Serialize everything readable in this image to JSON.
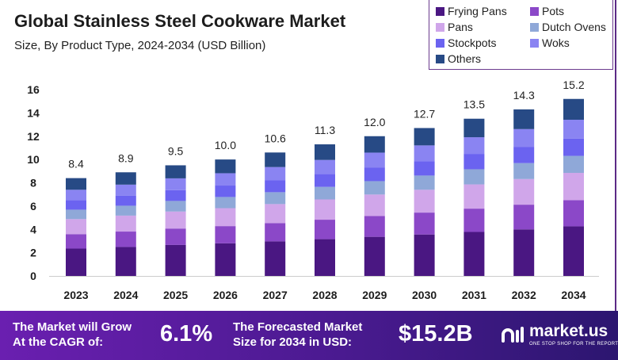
{
  "chart_data": {
    "type": "bar",
    "stacked": true,
    "title": "Global Stainless Steel Cookware Market",
    "subtitle": "Size, By Product Type, 2024-2034 (USD Billion)",
    "categories": [
      "2023",
      "2024",
      "2025",
      "2026",
      "2027",
      "2028",
      "2029",
      "2030",
      "2031",
      "2032",
      "2034"
    ],
    "totals": [
      "8.4",
      "8.9",
      "9.5",
      "10.0",
      "10.6",
      "11.3",
      "12.0",
      "12.7",
      "13.5",
      "14.3",
      "15.2"
    ],
    "ylim": [
      0,
      16
    ],
    "yticks": [
      0,
      2,
      4,
      6,
      8,
      10,
      12,
      14,
      16
    ],
    "grid": false,
    "legend_position": "top-right",
    "series": [
      {
        "name": "Frying Pans",
        "color": "#4a1782",
        "values": [
          2.35,
          2.49,
          2.66,
          2.8,
          2.97,
          3.16,
          3.36,
          3.56,
          3.78,
          4.0,
          4.26
        ]
      },
      {
        "name": "Pots",
        "color": "#8b48c8",
        "values": [
          1.24,
          1.32,
          1.41,
          1.48,
          1.57,
          1.67,
          1.78,
          1.88,
          2.0,
          2.12,
          2.25
        ]
      },
      {
        "name": "Pans",
        "color": "#d0a6ea",
        "values": [
          1.29,
          1.37,
          1.46,
          1.54,
          1.63,
          1.74,
          1.85,
          1.96,
          2.08,
          2.2,
          2.34
        ]
      },
      {
        "name": "Dutch Ovens",
        "color": "#8fa8d8",
        "values": [
          0.81,
          0.85,
          0.91,
          0.96,
          1.02,
          1.08,
          1.15,
          1.22,
          1.3,
          1.37,
          1.46
        ]
      },
      {
        "name": "Stockpots",
        "color": "#6b63f0",
        "values": [
          0.82,
          0.87,
          0.93,
          0.98,
          1.04,
          1.11,
          1.18,
          1.24,
          1.32,
          1.4,
          1.49
        ]
      },
      {
        "name": "Woks",
        "color": "#8a84f2",
        "values": [
          0.89,
          0.94,
          1.01,
          1.06,
          1.12,
          1.2,
          1.27,
          1.35,
          1.43,
          1.52,
          1.61
        ]
      },
      {
        "name": "Others",
        "color": "#274a85",
        "values": [
          1.0,
          1.06,
          1.12,
          1.18,
          1.25,
          1.34,
          1.41,
          1.49,
          1.59,
          1.69,
          1.79
        ]
      }
    ]
  },
  "footer": {
    "cagr_label_1": "The Market will Grow",
    "cagr_label_2": "At the CAGR of:",
    "cagr_value": "6.1%",
    "forecast_label_1": "The Forecasted Market",
    "forecast_label_2": "Size for 2034 in USD:",
    "forecast_value": "$15.2B",
    "brand": "market.us",
    "tagline": "ONE STOP SHOP FOR THE REPORTS"
  }
}
